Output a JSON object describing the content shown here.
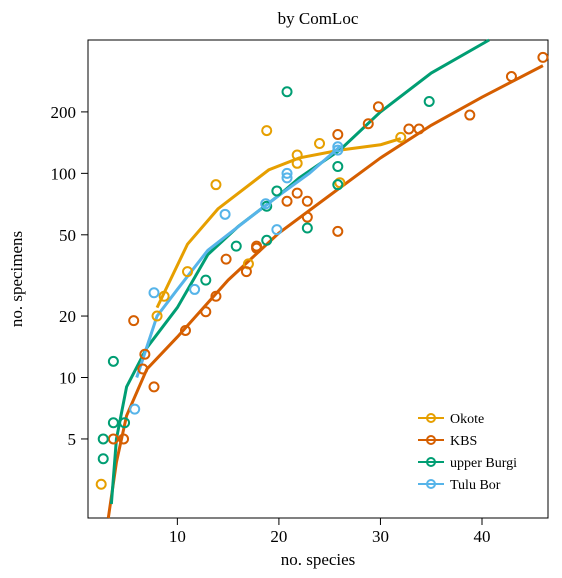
{
  "chart_data": {
    "type": "scatter",
    "title": "by ComLoc",
    "x_label": "no. species",
    "y_label": "no. specimens",
    "log_y": true,
    "legend": "bottom-right",
    "xlim": [
      1.2,
      46.5
    ],
    "xticks": [
      10,
      20,
      30,
      40
    ],
    "ylim": [
      2.05,
      450
    ],
    "yticks": [
      5,
      10,
      20,
      50,
      100,
      200
    ],
    "series": [
      {
        "name": "Okote",
        "color": "#E69F00",
        "x": [
          2.5,
          8.7,
          8,
          11,
          13.8,
          17,
          18.8,
          21.8,
          21.8,
          24,
          26,
          32
        ],
        "values": [
          3,
          25,
          20,
          33,
          88,
          36,
          162,
          123,
          112,
          140,
          90,
          150
        ],
        "line_x": [
          8,
          11,
          14,
          19,
          22,
          26,
          30,
          32
        ],
        "line_values": [
          22,
          45,
          67,
          104,
          119,
          130,
          138,
          148
        ]
      },
      {
        "name": "KBS",
        "color": "#D55E00",
        "x": [
          3.7,
          4.7,
          5.7,
          6.6,
          6.8,
          7.7,
          10.8,
          12.8,
          13.8,
          14.8,
          16.8,
          17.8,
          17.8,
          20.8,
          21.8,
          22.8,
          22.8,
          25.8,
          25.8,
          28.8,
          29.8,
          32.8,
          33.8,
          38.8,
          42.9,
          46
        ],
        "values": [
          5,
          5,
          19,
          11,
          13,
          9,
          17,
          21,
          25,
          38,
          33,
          44,
          43,
          73,
          80,
          73,
          61,
          52,
          155,
          175,
          212,
          165,
          165,
          193,
          298,
          370
        ],
        "line_x": [
          3.2,
          4,
          5,
          7,
          10,
          15,
          20,
          25,
          30,
          35,
          40,
          46
        ],
        "line_values": [
          2.05,
          3.85,
          6.5,
          11,
          15.8,
          30,
          51,
          78,
          119,
          172,
          236,
          337
        ]
      },
      {
        "name": "upper Burgi",
        "color": "#009E73",
        "x": [
          2.7,
          2.7,
          3.7,
          3.7,
          4.8,
          12.8,
          15.8,
          18.8,
          18.8,
          19.8,
          20.8,
          22.8,
          25.8,
          25.8,
          34.8
        ],
        "values": [
          5,
          4,
          12,
          6,
          6,
          30,
          44,
          47,
          69,
          82,
          251,
          54,
          108,
          88,
          225
        ],
        "line_x": [
          3.5,
          4,
          5,
          7,
          10,
          13,
          16,
          20,
          22,
          26,
          30,
          35,
          40.7
        ],
        "line_values": [
          2.4,
          5,
          9,
          14,
          22,
          40,
          55,
          78,
          95,
          130,
          200,
          310,
          450
        ]
      },
      {
        "name": "Tulu Bor",
        "color": "#56B4E9",
        "x": [
          5.8,
          7.7,
          11.7,
          14.7,
          18.7,
          19.8,
          20.8,
          20.8,
          25.8,
          25.8
        ],
        "values": [
          7,
          26,
          27,
          63,
          71,
          53,
          100,
          95,
          135,
          130
        ],
        "line_x": [
          6,
          8,
          10,
          13,
          17,
          20,
          23,
          26
        ],
        "line_values": [
          10,
          20,
          27,
          42,
          60,
          78,
          100,
          135
        ]
      }
    ]
  }
}
